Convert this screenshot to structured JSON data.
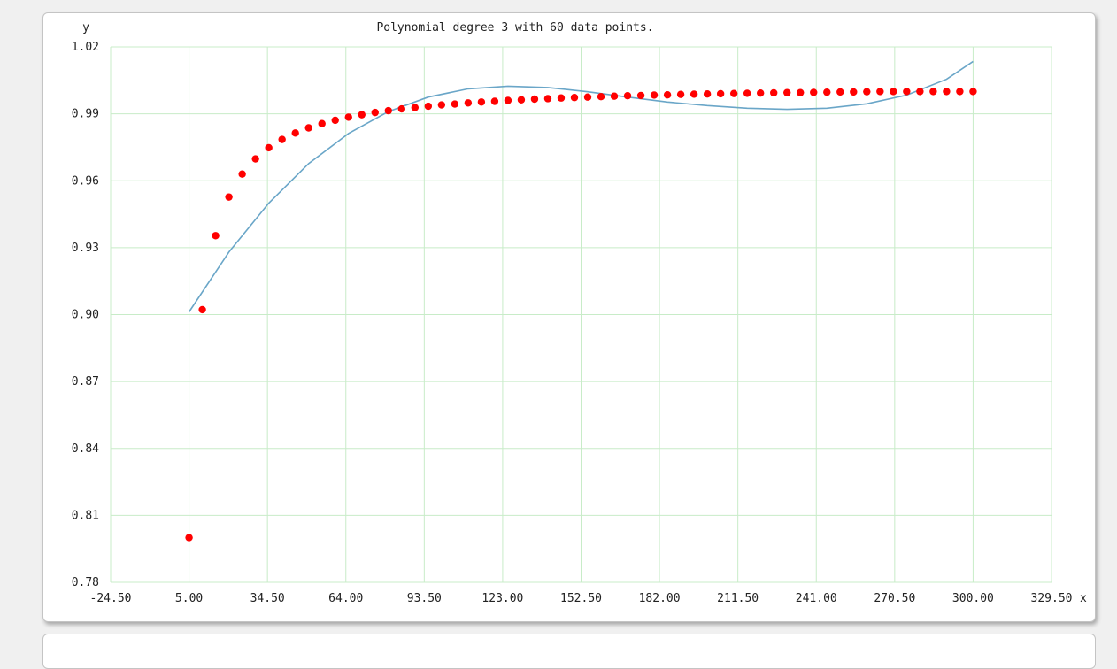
{
  "chart_data": {
    "type": "scatter",
    "title": "Polynomial degree 3 with 60 data points.",
    "xlabel": "x",
    "ylabel": "y",
    "xlim": [
      -24.5,
      329.5
    ],
    "ylim": [
      0.78,
      1.02
    ],
    "x_ticks": [
      "-24.50",
      "5.00",
      "34.50",
      "64.00",
      "93.50",
      "123.00",
      "152.50",
      "182.00",
      "211.50",
      "241.00",
      "270.50",
      "300.00",
      "329.50"
    ],
    "y_ticks": [
      "1.02",
      "0.99",
      "0.96",
      "0.93",
      "0.90",
      "0.87",
      "0.84",
      "0.81",
      "0.78"
    ],
    "grid": true,
    "colors": {
      "points": "#ff0000",
      "curve": "#6aa6c8",
      "grid": "#c8ecc8",
      "axis": "#c8ecc8"
    },
    "series": [
      {
        "kind": "points",
        "x": [
          5,
          10,
          15,
          20,
          25,
          30,
          35,
          40,
          45,
          50,
          55,
          60,
          65,
          70,
          75,
          80,
          85,
          90,
          95,
          100,
          105,
          110,
          115,
          120,
          125,
          130,
          135,
          140,
          145,
          150,
          155,
          160,
          165,
          170,
          175,
          180,
          185,
          190,
          195,
          200,
          205,
          210,
          215,
          220,
          225,
          230,
          235,
          240,
          245,
          250,
          255,
          260,
          265,
          270,
          275,
          280,
          285,
          290,
          295,
          300
        ],
        "y": [
          0.8,
          0.9022,
          0.9354,
          0.9527,
          0.963,
          0.9698,
          0.9748,
          0.9785,
          0.9814,
          0.9837,
          0.9856,
          0.9871,
          0.9885,
          0.9896,
          0.9906,
          0.9914,
          0.9922,
          0.9928,
          0.9934,
          0.994,
          0.9944,
          0.9949,
          0.9953,
          0.9956,
          0.996,
          0.9963,
          0.9966,
          0.9968,
          0.9971,
          0.9973,
          0.9975,
          0.9977,
          0.9979,
          0.9981,
          0.9982,
          0.9984,
          0.9985,
          0.9987,
          0.9988,
          0.9989,
          0.999,
          0.9991,
          0.9992,
          0.9993,
          0.9994,
          0.9995,
          0.9995,
          0.9996,
          0.9997,
          0.9998,
          0.9998,
          0.9999,
          1.0,
          1.0,
          1.0,
          1.0,
          1.0,
          1.0,
          1.0,
          1.0
        ]
      },
      {
        "kind": "polyline",
        "x": [
          5,
          20,
          35,
          50,
          65,
          80,
          95,
          110,
          125,
          140,
          155,
          170,
          185,
          200,
          215,
          230,
          245,
          260,
          275,
          290,
          300
        ],
        "y": [
          0.9012,
          0.928,
          0.95,
          0.9677,
          0.9812,
          0.991,
          0.9975,
          1.0012,
          1.0024,
          1.0018,
          0.9999,
          0.9975,
          0.9953,
          0.9937,
          0.9925,
          0.992,
          0.9925,
          0.9945,
          0.9984,
          1.0055,
          1.0135
        ]
      }
    ]
  }
}
